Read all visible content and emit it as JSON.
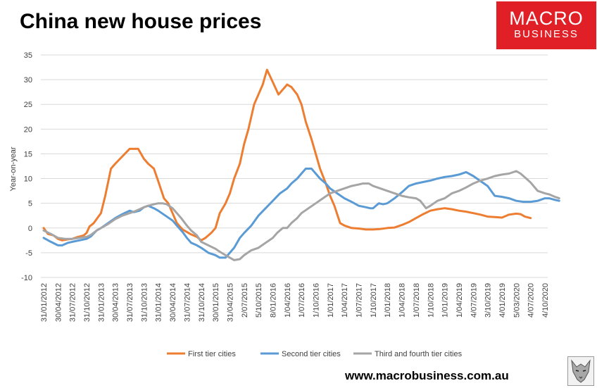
{
  "title": "China new house prices",
  "logo": {
    "line1": "MACRO",
    "line2": "BUSINESS"
  },
  "website": "www.macrobusiness.com.au",
  "chart_data": {
    "type": "line",
    "title": "China new house prices",
    "ylabel": "Year-on-year",
    "xlabel": "",
    "ylim": [
      -10,
      35
    ],
    "yticks": [
      35,
      30,
      25,
      20,
      15,
      10,
      5,
      0,
      -5,
      -10
    ],
    "grid": true,
    "legend_position": "bottom",
    "x_tick_labels": [
      "31/01/2012",
      "30/04/2012",
      "31/07/2012",
      "31/10/2012",
      "31/01/2013",
      "30/04/2013",
      "31/07/2013",
      "31/10/2013",
      "31/01/2014",
      "30/04/2014",
      "31/07/2014",
      "31/10/2014",
      "30/01/2015",
      "31/04/2015",
      "2/07/2015",
      "5/10/2015",
      "8/01/2016",
      "1/04/2016",
      "1/07/2016",
      "1/10/2016",
      "1/01/2017",
      "1/04/2017",
      "1/07/2017",
      "1/10/2017",
      "1/01/2018",
      "1/04/2018",
      "1/07/2018",
      "1/10/2018",
      "1/01/2019",
      "1/04/2019",
      "4/07/2019",
      "3/10/2019",
      "4/01/2019",
      "5/03/2020",
      "4/07/2020",
      "4/10/2020"
    ],
    "series": [
      {
        "name": "First tier cities",
        "color": "#ed7d31",
        "points": [
          [
            0,
            0
          ],
          [
            0.3,
            -1.2
          ],
          [
            0.7,
            -1.5
          ],
          [
            1,
            -2.2
          ],
          [
            1.3,
            -2.5
          ],
          [
            1.7,
            -2.3
          ],
          [
            2,
            -2.2
          ],
          [
            2.4,
            -1.8
          ],
          [
            2.8,
            -1.5
          ],
          [
            3,
            -1
          ],
          [
            3.2,
            0.3
          ],
          [
            3.5,
            1
          ],
          [
            3.8,
            2.2
          ],
          [
            4,
            3
          ],
          [
            4.3,
            6.5
          ],
          [
            4.7,
            12
          ],
          [
            5,
            13
          ],
          [
            5.5,
            14.5
          ],
          [
            6,
            16
          ],
          [
            6.3,
            16
          ],
          [
            6.6,
            16
          ],
          [
            7,
            14
          ],
          [
            7.3,
            13
          ],
          [
            7.7,
            12
          ],
          [
            8,
            9.5
          ],
          [
            8.4,
            6
          ],
          [
            8.7,
            5
          ],
          [
            9,
            3
          ],
          [
            9.3,
            1
          ],
          [
            9.7,
            -0.3
          ],
          [
            10,
            -0.8
          ],
          [
            10.3,
            -1.3
          ],
          [
            10.7,
            -1.8
          ],
          [
            11,
            -2.5
          ],
          [
            11.3,
            -2
          ],
          [
            11.7,
            -1
          ],
          [
            12,
            0
          ],
          [
            12.3,
            3
          ],
          [
            12.7,
            5
          ],
          [
            13,
            7
          ],
          [
            13.3,
            10
          ],
          [
            13.7,
            13
          ],
          [
            14,
            17
          ],
          [
            14.3,
            20
          ],
          [
            14.7,
            25
          ],
          [
            15,
            27
          ],
          [
            15.3,
            29
          ],
          [
            15.6,
            32
          ],
          [
            16,
            29.5
          ],
          [
            16.4,
            27
          ],
          [
            16.7,
            28
          ],
          [
            17,
            29
          ],
          [
            17.3,
            28.5
          ],
          [
            17.7,
            27
          ],
          [
            18,
            25
          ],
          [
            18.3,
            21.5
          ],
          [
            18.7,
            18
          ],
          [
            19,
            15
          ],
          [
            19.3,
            12
          ],
          [
            19.7,
            9
          ],
          [
            20,
            6.5
          ],
          [
            20.3,
            4.5
          ],
          [
            20.7,
            1
          ],
          [
            21,
            0.5
          ],
          [
            21.5,
            0
          ],
          [
            22,
            -0.1
          ],
          [
            22.5,
            -0.3
          ],
          [
            23,
            -0.3
          ],
          [
            23.5,
            -0.2
          ],
          [
            24,
            0
          ],
          [
            24.5,
            0.1
          ],
          [
            25,
            0.6
          ],
          [
            25.5,
            1.2
          ],
          [
            26,
            2
          ],
          [
            26.5,
            2.8
          ],
          [
            27,
            3.5
          ],
          [
            27.5,
            3.8
          ],
          [
            28,
            4
          ],
          [
            28.5,
            3.8
          ],
          [
            29,
            3.5
          ],
          [
            29.5,
            3.3
          ],
          [
            30,
            3
          ],
          [
            30.5,
            2.7
          ],
          [
            31,
            2.3
          ],
          [
            31.5,
            2.2
          ],
          [
            32,
            2.1
          ],
          [
            32.5,
            2.7
          ],
          [
            33,
            2.9
          ],
          [
            33.3,
            2.8
          ],
          [
            33.6,
            2.3
          ],
          [
            34,
            2
          ]
        ]
      },
      {
        "name": "Second tier cities",
        "color": "#5b9bd5",
        "points": [
          [
            0,
            -2
          ],
          [
            0.5,
            -2.8
          ],
          [
            1,
            -3.5
          ],
          [
            1.3,
            -3.5
          ],
          [
            1.7,
            -3
          ],
          [
            2,
            -2.8
          ],
          [
            2.5,
            -2.5
          ],
          [
            3,
            -2.2
          ],
          [
            3.3,
            -1.7
          ],
          [
            3.7,
            -0.5
          ],
          [
            4,
            0
          ],
          [
            4.5,
            1
          ],
          [
            5,
            2
          ],
          [
            5.5,
            2.8
          ],
          [
            6,
            3.5
          ],
          [
            6.3,
            3.2
          ],
          [
            6.7,
            3.5
          ],
          [
            7,
            4.2
          ],
          [
            7.3,
            4.5
          ],
          [
            7.7,
            4
          ],
          [
            8,
            3.5
          ],
          [
            8.5,
            2.5
          ],
          [
            9,
            1.5
          ],
          [
            9.3,
            0.5
          ],
          [
            9.7,
            -0.8
          ],
          [
            10,
            -2
          ],
          [
            10.3,
            -3
          ],
          [
            10.7,
            -3.5
          ],
          [
            11,
            -4
          ],
          [
            11.5,
            -5
          ],
          [
            12,
            -5.5
          ],
          [
            12.3,
            -6
          ],
          [
            12.7,
            -6
          ],
          [
            13,
            -5
          ],
          [
            13.3,
            -4
          ],
          [
            13.7,
            -2
          ],
          [
            14,
            -1
          ],
          [
            14.5,
            0.5
          ],
          [
            15,
            2.5
          ],
          [
            15.5,
            4
          ],
          [
            16,
            5.5
          ],
          [
            16.5,
            7
          ],
          [
            17,
            8
          ],
          [
            17.3,
            9
          ],
          [
            17.7,
            10
          ],
          [
            18,
            11
          ],
          [
            18.3,
            12
          ],
          [
            18.7,
            12
          ],
          [
            19,
            11
          ],
          [
            19.3,
            10
          ],
          [
            19.7,
            9
          ],
          [
            20,
            8
          ],
          [
            20.5,
            7
          ],
          [
            21,
            6
          ],
          [
            21.5,
            5.3
          ],
          [
            22,
            4.5
          ],
          [
            22.5,
            4.2
          ],
          [
            22.8,
            4
          ],
          [
            23,
            4
          ],
          [
            23.4,
            5
          ],
          [
            23.7,
            4.8
          ],
          [
            24,
            5
          ],
          [
            24.5,
            6
          ],
          [
            25,
            7.2
          ],
          [
            25.5,
            8.5
          ],
          [
            26,
            9
          ],
          [
            26.5,
            9.3
          ],
          [
            27,
            9.6
          ],
          [
            27.5,
            10
          ],
          [
            28,
            10.3
          ],
          [
            28.5,
            10.5
          ],
          [
            29,
            10.8
          ],
          [
            29.5,
            11.3
          ],
          [
            30,
            10.5
          ],
          [
            30.5,
            9.5
          ],
          [
            31,
            8.5
          ],
          [
            31.5,
            6.5
          ],
          [
            32,
            6.3
          ],
          [
            32.5,
            6
          ],
          [
            33,
            5.5
          ],
          [
            33.5,
            5.3
          ],
          [
            34,
            5.3
          ],
          [
            34.5,
            5.5
          ],
          [
            35,
            6
          ],
          [
            35.3,
            6
          ],
          [
            35.7,
            5.7
          ],
          [
            36,
            5.5
          ]
        ]
      },
      {
        "name": "Third and fourth tier cities",
        "color": "#a5a5a5",
        "points": [
          [
            0,
            -0.5
          ],
          [
            0.5,
            -1.2
          ],
          [
            1,
            -2
          ],
          [
            1.5,
            -2.2
          ],
          [
            2,
            -2.2
          ],
          [
            2.5,
            -2
          ],
          [
            3,
            -1.8
          ],
          [
            3.3,
            -1.4
          ],
          [
            3.7,
            -0.5
          ],
          [
            4,
            0
          ],
          [
            4.5,
            0.8
          ],
          [
            5,
            1.8
          ],
          [
            5.5,
            2.5
          ],
          [
            6,
            3
          ],
          [
            6.3,
            3.3
          ],
          [
            6.7,
            3.8
          ],
          [
            7,
            4.2
          ],
          [
            7.3,
            4.5
          ],
          [
            7.7,
            4.8
          ],
          [
            8,
            5
          ],
          [
            8.3,
            5
          ],
          [
            8.6,
            4.8
          ],
          [
            9,
            4
          ],
          [
            9.3,
            3
          ],
          [
            9.6,
            2
          ],
          [
            10,
            0.5
          ],
          [
            10.3,
            -0.5
          ],
          [
            10.7,
            -1.5
          ],
          [
            11,
            -2.8
          ],
          [
            11.5,
            -3.5
          ],
          [
            12,
            -4.2
          ],
          [
            12.3,
            -4.8
          ],
          [
            12.7,
            -5.5
          ],
          [
            13,
            -6
          ],
          [
            13.3,
            -6.5
          ],
          [
            13.7,
            -6.3
          ],
          [
            14,
            -5.5
          ],
          [
            14.5,
            -4.5
          ],
          [
            15,
            -4
          ],
          [
            15.5,
            -3
          ],
          [
            16,
            -2
          ],
          [
            16.3,
            -1
          ],
          [
            16.7,
            0
          ],
          [
            17,
            0
          ],
          [
            17.3,
            1
          ],
          [
            17.7,
            2
          ],
          [
            18,
            3
          ],
          [
            18.5,
            4
          ],
          [
            19,
            5
          ],
          [
            19.5,
            6
          ],
          [
            20,
            7
          ],
          [
            20.5,
            7.5
          ],
          [
            21,
            8
          ],
          [
            21.5,
            8.5
          ],
          [
            22,
            8.8
          ],
          [
            22.3,
            9
          ],
          [
            22.7,
            9
          ],
          [
            23,
            8.5
          ],
          [
            23.5,
            8
          ],
          [
            24,
            7.5
          ],
          [
            24.5,
            7
          ],
          [
            25,
            6.5
          ],
          [
            25.5,
            6.2
          ],
          [
            26,
            6
          ],
          [
            26.3,
            5.5
          ],
          [
            26.7,
            4
          ],
          [
            27,
            4.5
          ],
          [
            27.5,
            5.5
          ],
          [
            28,
            6
          ],
          [
            28.5,
            7
          ],
          [
            29,
            7.5
          ],
          [
            29.5,
            8.2
          ],
          [
            30,
            9
          ],
          [
            30.5,
            9.6
          ],
          [
            31,
            10
          ],
          [
            31.5,
            10.5
          ],
          [
            32,
            10.8
          ],
          [
            32.5,
            11
          ],
          [
            33,
            11.5
          ],
          [
            33.3,
            11
          ],
          [
            33.7,
            10
          ],
          [
            34,
            9.2
          ],
          [
            34.5,
            7.5
          ],
          [
            35,
            7
          ],
          [
            35.3,
            6.8
          ],
          [
            35.7,
            6.3
          ],
          [
            36,
            6
          ]
        ]
      }
    ]
  }
}
